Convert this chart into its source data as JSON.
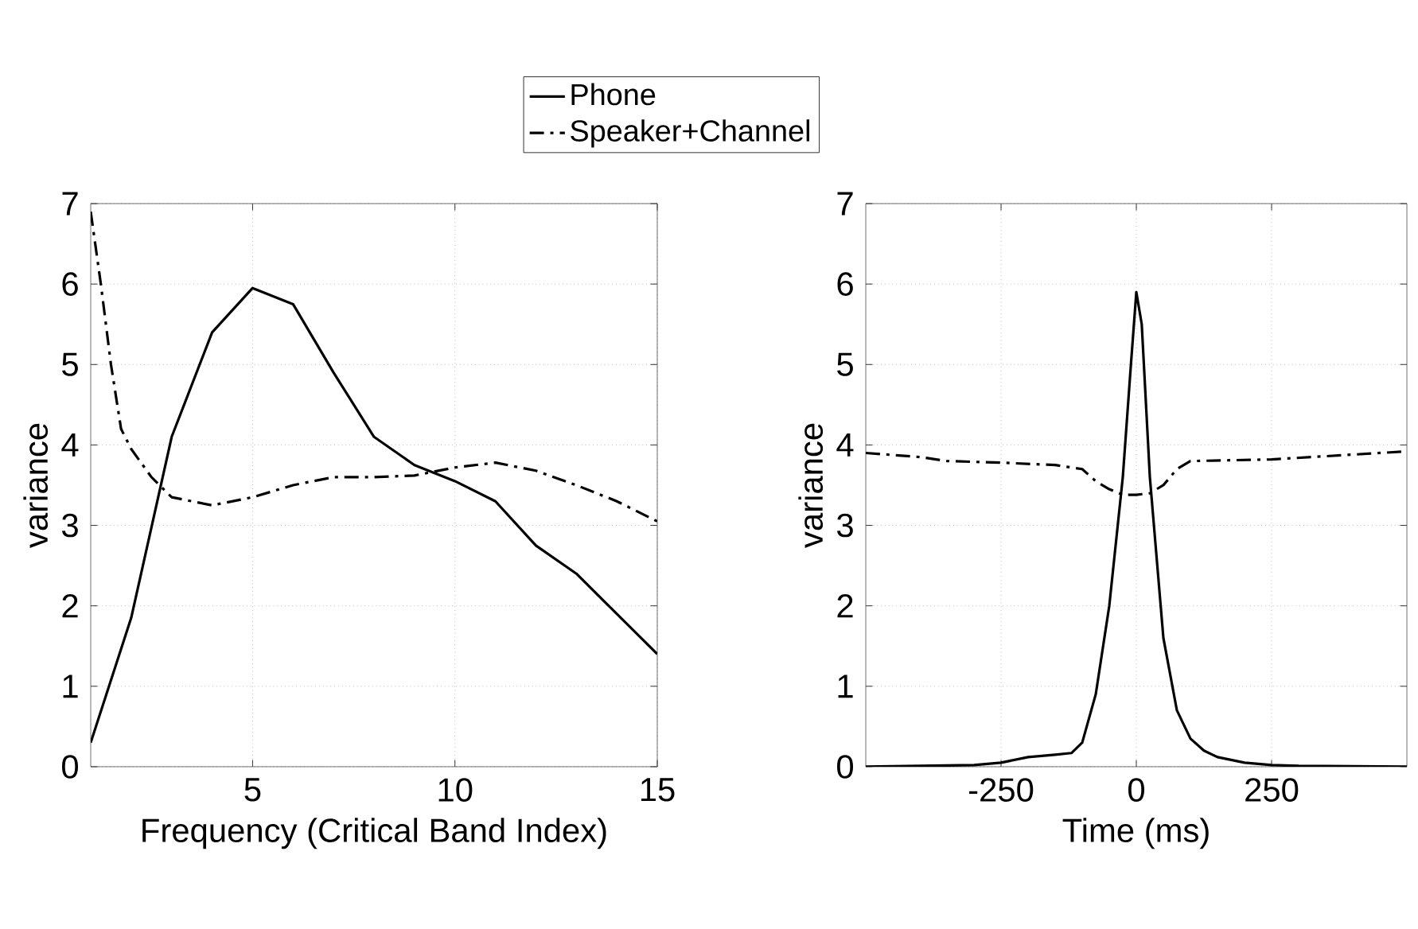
{
  "chart_data": [
    {
      "type": "line",
      "xlabel": "Frequency (Critical Band Index)",
      "ylabel": "variance",
      "xlim": [
        1,
        15
      ],
      "ylim": [
        0,
        7
      ],
      "xticks": [
        5,
        10,
        15
      ],
      "yticks": [
        0,
        1,
        2,
        3,
        4,
        5,
        6,
        7
      ],
      "grid": true,
      "legend": "top",
      "series": [
        {
          "name": "Phone",
          "color": "#000000",
          "line_style": "solid",
          "x": [
            1,
            2,
            3,
            4,
            5,
            6,
            7,
            8,
            9,
            10,
            11,
            12,
            13,
            14,
            15
          ],
          "values": [
            0.3,
            1.85,
            4.1,
            5.4,
            5.95,
            5.75,
            4.9,
            4.1,
            3.75,
            3.55,
            3.3,
            2.75,
            2.4,
            1.9,
            1.4
          ]
        },
        {
          "name": "Speaker+Channel",
          "color": "#000000",
          "line_style": "dashdot",
          "x": [
            1,
            1.25,
            1.5,
            1.75,
            2,
            2.5,
            3,
            4,
            5,
            6,
            7,
            8,
            9,
            10,
            11,
            12,
            13,
            14,
            15
          ],
          "values": [
            6.9,
            6.0,
            5.0,
            4.2,
            3.95,
            3.6,
            3.35,
            3.25,
            3.35,
            3.5,
            3.6,
            3.6,
            3.62,
            3.72,
            3.78,
            3.68,
            3.5,
            3.3,
            3.05
          ]
        }
      ]
    },
    {
      "type": "line",
      "xlabel": "Time (ms)",
      "ylabel": "variance",
      "xlim": [
        -500,
        500
      ],
      "ylim": [
        0,
        7
      ],
      "xticks": [
        -250,
        0,
        250
      ],
      "yticks": [
        0,
        1,
        2,
        3,
        4,
        5,
        6,
        7
      ],
      "grid": true,
      "series": [
        {
          "color": "#000000",
          "line_style": "solid",
          "x": [
            -500,
            -300,
            -250,
            -200,
            -150,
            -120,
            -100,
            -75,
            -50,
            -25,
            -10,
            0,
            10,
            25,
            50,
            75,
            100,
            125,
            150,
            200,
            250,
            300,
            500
          ],
          "values": [
            0,
            0.02,
            0.05,
            0.12,
            0.15,
            0.17,
            0.3,
            0.9,
            2.0,
            3.6,
            5.0,
            5.9,
            5.5,
            3.6,
            1.6,
            0.7,
            0.35,
            0.2,
            0.12,
            0.05,
            0.02,
            0.01,
            0
          ]
        },
        {
          "color": "#000000",
          "line_style": "dashdot",
          "x": [
            -500,
            -400,
            -350,
            -250,
            -150,
            -100,
            -75,
            -50,
            -25,
            0,
            25,
            50,
            75,
            100,
            250,
            400,
            500
          ],
          "values": [
            3.9,
            3.85,
            3.8,
            3.78,
            3.75,
            3.7,
            3.55,
            3.45,
            3.38,
            3.38,
            3.4,
            3.5,
            3.7,
            3.8,
            3.82,
            3.88,
            3.92
          ]
        }
      ]
    }
  ]
}
